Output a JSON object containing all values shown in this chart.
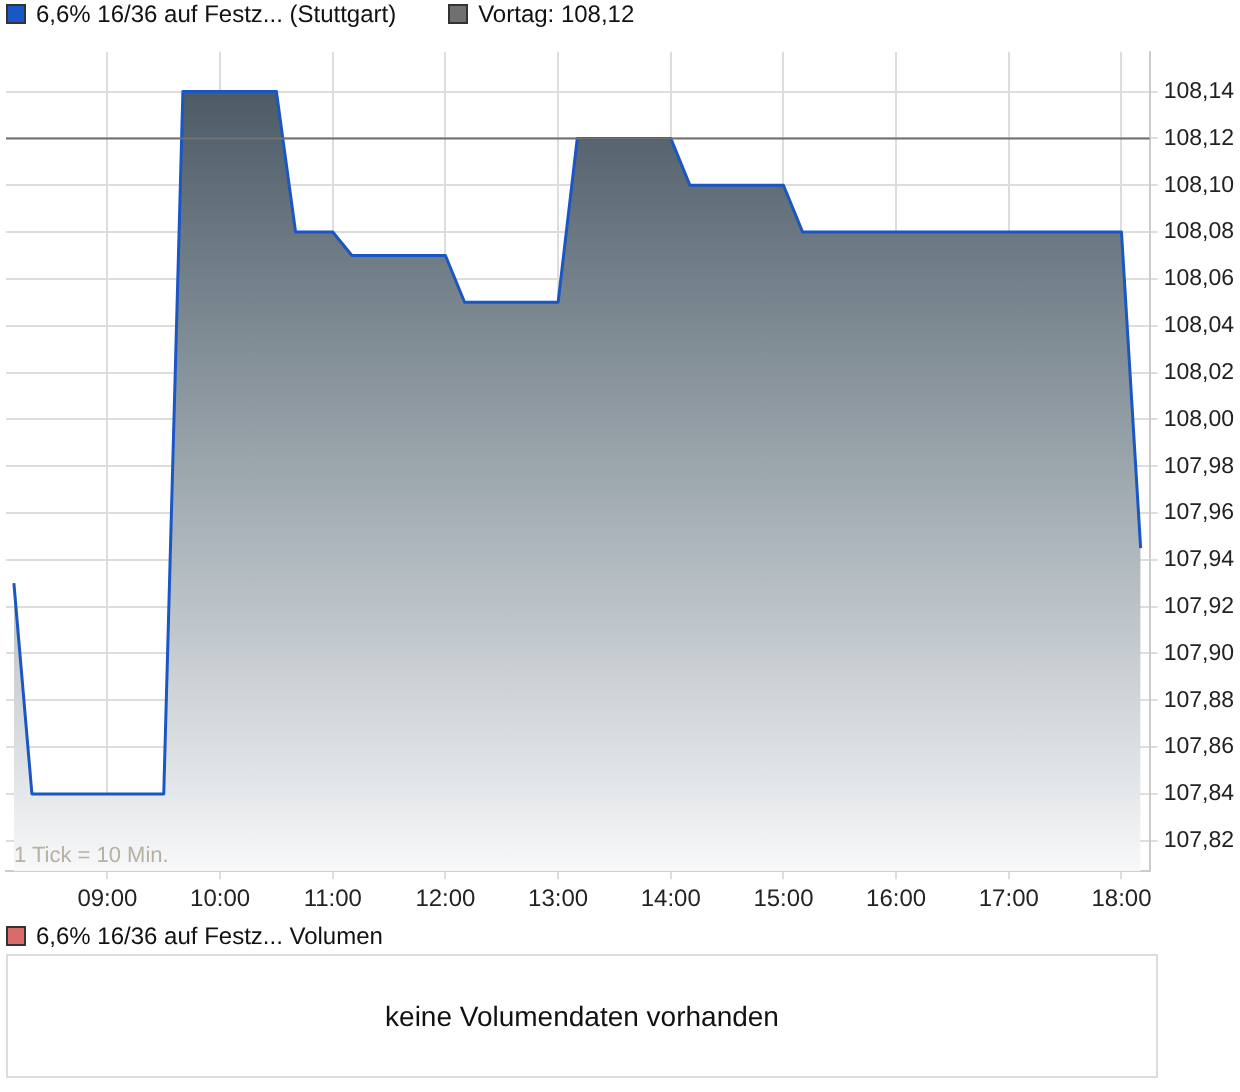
{
  "chart_data": [
    {
      "type": "area",
      "legend": "top left",
      "grid": true,
      "marker": "none",
      "x": [
        8.17,
        8.33,
        9.5,
        9.67,
        10.5,
        10.67,
        11.0,
        11.17,
        12.0,
        12.17,
        13.0,
        13.17,
        14.0,
        14.17,
        15.0,
        15.17,
        18.0,
        18.17
      ],
      "series": [
        {
          "name": "6,6% 16/36 auf Festz... (Stuttgart)",
          "color": "#1a56c4",
          "values": [
            107.93,
            107.84,
            107.84,
            108.14,
            108.14,
            108.08,
            108.08,
            108.07,
            108.07,
            108.05,
            108.05,
            108.12,
            108.12,
            108.1,
            108.1,
            108.08,
            108.08,
            107.945
          ]
        }
      ],
      "xlim": [
        8.1,
        18.25
      ],
      "xticks": [
        {
          "value": 9,
          "label": "09:00"
        },
        {
          "value": 10,
          "label": "10:00"
        },
        {
          "value": 11,
          "label": "11:00"
        },
        {
          "value": 12,
          "label": "12:00"
        },
        {
          "value": 13,
          "label": "13:00"
        },
        {
          "value": 14,
          "label": "14:00"
        },
        {
          "value": 15,
          "label": "15:00"
        },
        {
          "value": 16,
          "label": "16:00"
        },
        {
          "value": 17,
          "label": "17:00"
        },
        {
          "value": 18,
          "label": "18:00"
        }
      ],
      "ylim": [
        107.807,
        108.157
      ],
      "yticks": [
        {
          "value": 107.82,
          "label": "107,82"
        },
        {
          "value": 107.84,
          "label": "107,84"
        },
        {
          "value": 107.86,
          "label": "107,86"
        },
        {
          "value": 107.88,
          "label": "107,88"
        },
        {
          "value": 107.9,
          "label": "107,90"
        },
        {
          "value": 107.92,
          "label": "107,92"
        },
        {
          "value": 107.94,
          "label": "107,94"
        },
        {
          "value": 107.96,
          "label": "107,96"
        },
        {
          "value": 107.98,
          "label": "107,98"
        },
        {
          "value": 108.0,
          "label": "108,00"
        },
        {
          "value": 108.02,
          "label": "108,02"
        },
        {
          "value": 108.04,
          "label": "108,04"
        },
        {
          "value": 108.06,
          "label": "108,06"
        },
        {
          "value": 108.08,
          "label": "108,08"
        },
        {
          "value": 108.1,
          "label": "108,10"
        },
        {
          "value": 108.12,
          "label": "108,12"
        },
        {
          "value": 108.14,
          "label": "108,14"
        }
      ],
      "ref_lines": [
        {
          "axis": "y",
          "value": 108.12,
          "label": "Vortag: 108,12",
          "color": "#707070"
        }
      ],
      "annotations": [
        "1 Tick = 10 Min."
      ]
    },
    {
      "type": "other",
      "title": "6,6% 16/36 auf Festz... Volumen",
      "color": "#d96b6b",
      "annotations": [
        "keine Volumendaten vorhanden"
      ]
    }
  ]
}
